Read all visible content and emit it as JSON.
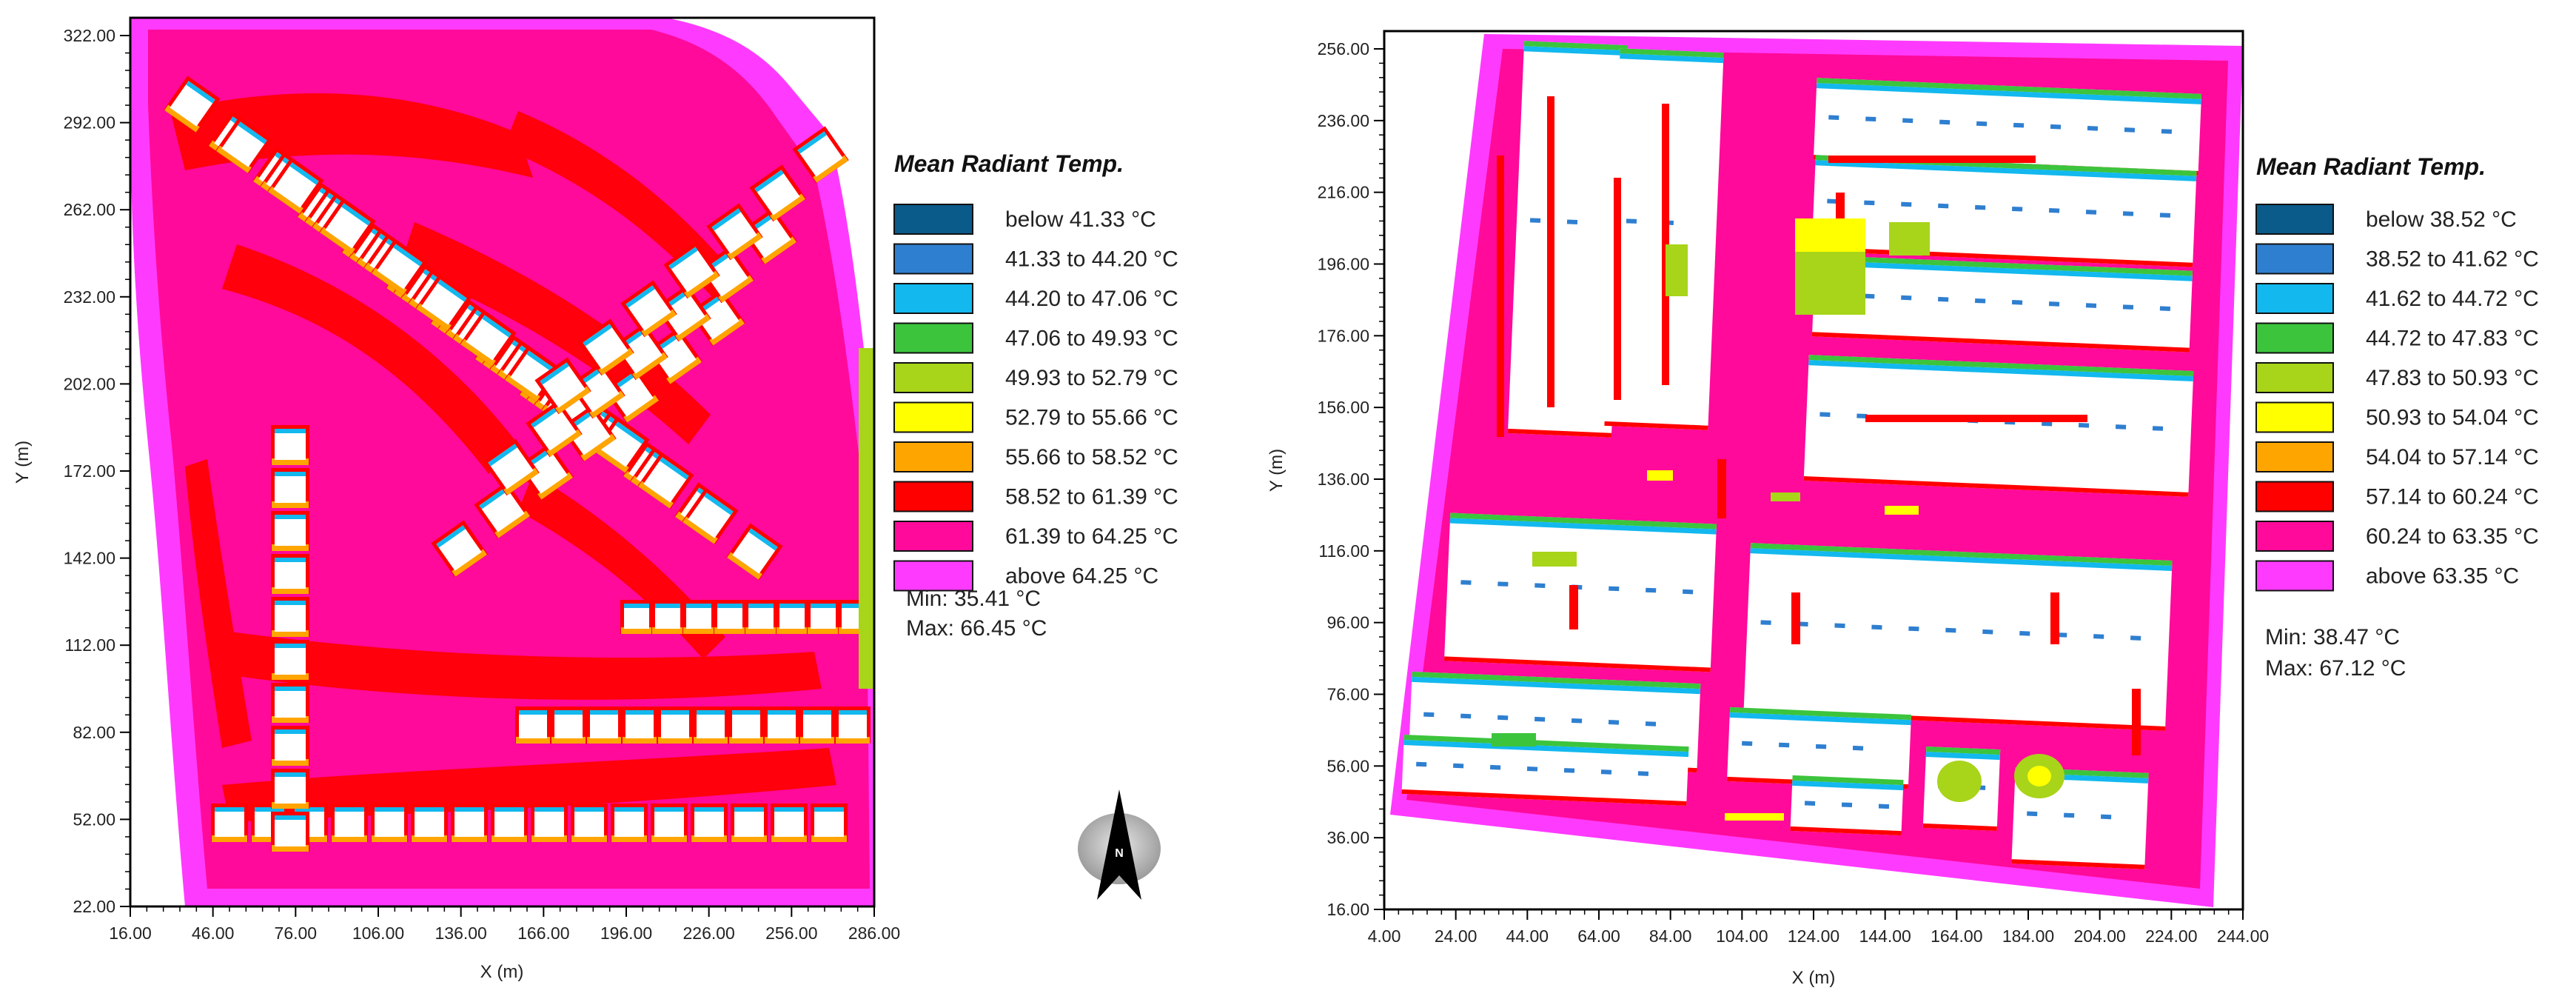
{
  "palette": {
    "below": "#0a5a8a",
    "c2": "#2f7fd0",
    "c3": "#12b8ee",
    "c4": "#3cc43c",
    "c5": "#a8d41a",
    "c6": "#ffff00",
    "c7": "#ffa500",
    "c8": "#ff0000",
    "c9": "#ff0a9a",
    "above": "#ff3aff",
    "building": "#ffffff",
    "frame": "#000000"
  },
  "maps": [
    {
      "id": "left",
      "x_axis": {
        "label": "X (m)",
        "ticks": [
          "16.00",
          "46.00",
          "76.00",
          "106.00",
          "136.00",
          "166.00",
          "196.00",
          "226.00",
          "256.00",
          "286.00"
        ]
      },
      "y_axis": {
        "label": "Y (m)",
        "ticks": [
          "22.00",
          "52.00",
          "82.00",
          "112.00",
          "142.00",
          "172.00",
          "202.00",
          "232.00",
          "262.00",
          "292.00",
          "322.00"
        ]
      },
      "legend": {
        "title": "Mean Radiant Temp.",
        "entries": [
          {
            "label": "below 41.33 °C",
            "color": "#0a5a8a"
          },
          {
            "label": "41.33 to 44.20 °C",
            "color": "#2f7fd0"
          },
          {
            "label": "44.20 to 47.06 °C",
            "color": "#12b8ee"
          },
          {
            "label": "47.06 to 49.93 °C",
            "color": "#3cc43c"
          },
          {
            "label": "49.93 to 52.79 °C",
            "color": "#a8d41a"
          },
          {
            "label": "52.79 to 55.66 °C",
            "color": "#ffff00"
          },
          {
            "label": "55.66 to 58.52 °C",
            "color": "#ffa500"
          },
          {
            "label": "58.52 to 61.39 °C",
            "color": "#ff0000"
          },
          {
            "label": "61.39 to 64.25 °C",
            "color": "#ff0a9a"
          },
          {
            "label": "above 64.25 °C",
            "color": "#ff3aff"
          }
        ],
        "min": "Min: 35.41 °C",
        "max": "Max: 66.45 °C"
      }
    },
    {
      "id": "right",
      "x_axis": {
        "label": "X (m)",
        "ticks": [
          "4.00",
          "24.00",
          "44.00",
          "64.00",
          "84.00",
          "104.00",
          "124.00",
          "144.00",
          "164.00",
          "184.00",
          "204.00",
          "224.00",
          "244.00"
        ]
      },
      "y_axis": {
        "label": "Y (m)",
        "ticks": [
          "16.00",
          "36.00",
          "56.00",
          "76.00",
          "96.00",
          "116.00",
          "136.00",
          "156.00",
          "176.00",
          "196.00",
          "216.00",
          "236.00",
          "256.00"
        ]
      },
      "legend": {
        "title": "Mean Radiant Temp.",
        "entries": [
          {
            "label": "below 38.52 °C",
            "color": "#0a5a8a"
          },
          {
            "label": "38.52 to 41.62 °C",
            "color": "#2f7fd0"
          },
          {
            "label": "41.62 to 44.72 °C",
            "color": "#12b8ee"
          },
          {
            "label": "44.72 to 47.83 °C",
            "color": "#3cc43c"
          },
          {
            "label": "47.83 to 50.93 °C",
            "color": "#a8d41a"
          },
          {
            "label": "50.93 to 54.04 °C",
            "color": "#ffff00"
          },
          {
            "label": "54.04 to 57.14 °C",
            "color": "#ffa500"
          },
          {
            "label": "57.14 to 60.24 °C",
            "color": "#ff0000"
          },
          {
            "label": "60.24 to 63.35 °C",
            "color": "#ff0a9a"
          },
          {
            "label": "above 63.35 °C",
            "color": "#ff3aff"
          }
        ],
        "min": "Min: 38.47 °C",
        "max": "Max: 67.12 °C"
      }
    }
  ],
  "north_arrow": {
    "label": "N",
    "icon": "north-arrow-icon"
  }
}
